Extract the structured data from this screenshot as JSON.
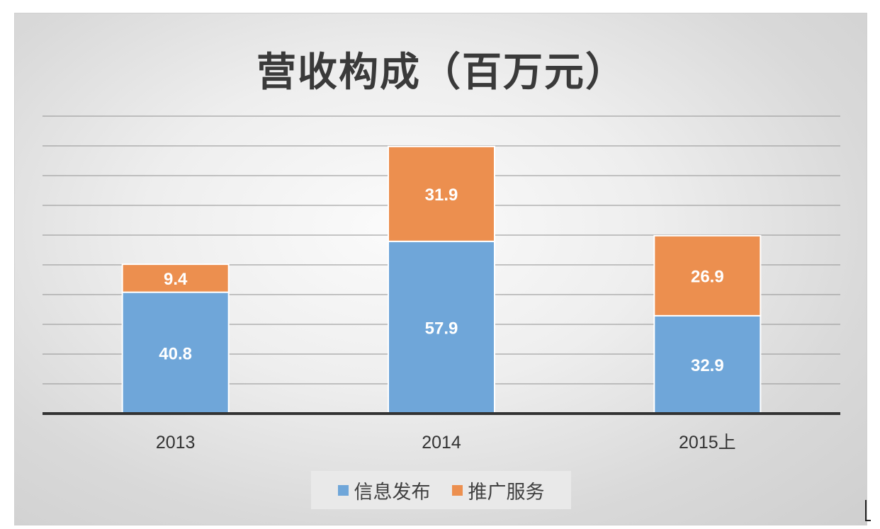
{
  "chart_data": {
    "type": "bar",
    "stacked": true,
    "title": "营收构成（百万元）",
    "categories": [
      "2013",
      "2014",
      "2015上"
    ],
    "series": [
      {
        "name": "信息发布",
        "values": [
          40.8,
          57.9,
          32.9
        ],
        "color": "#6fa6d9"
      },
      {
        "name": "推广服务",
        "values": [
          9.4,
          31.9,
          26.9
        ],
        "color": "#ec8f4f"
      }
    ],
    "ylim": [
      0,
      100
    ],
    "grid": true,
    "legend": "bottom"
  }
}
